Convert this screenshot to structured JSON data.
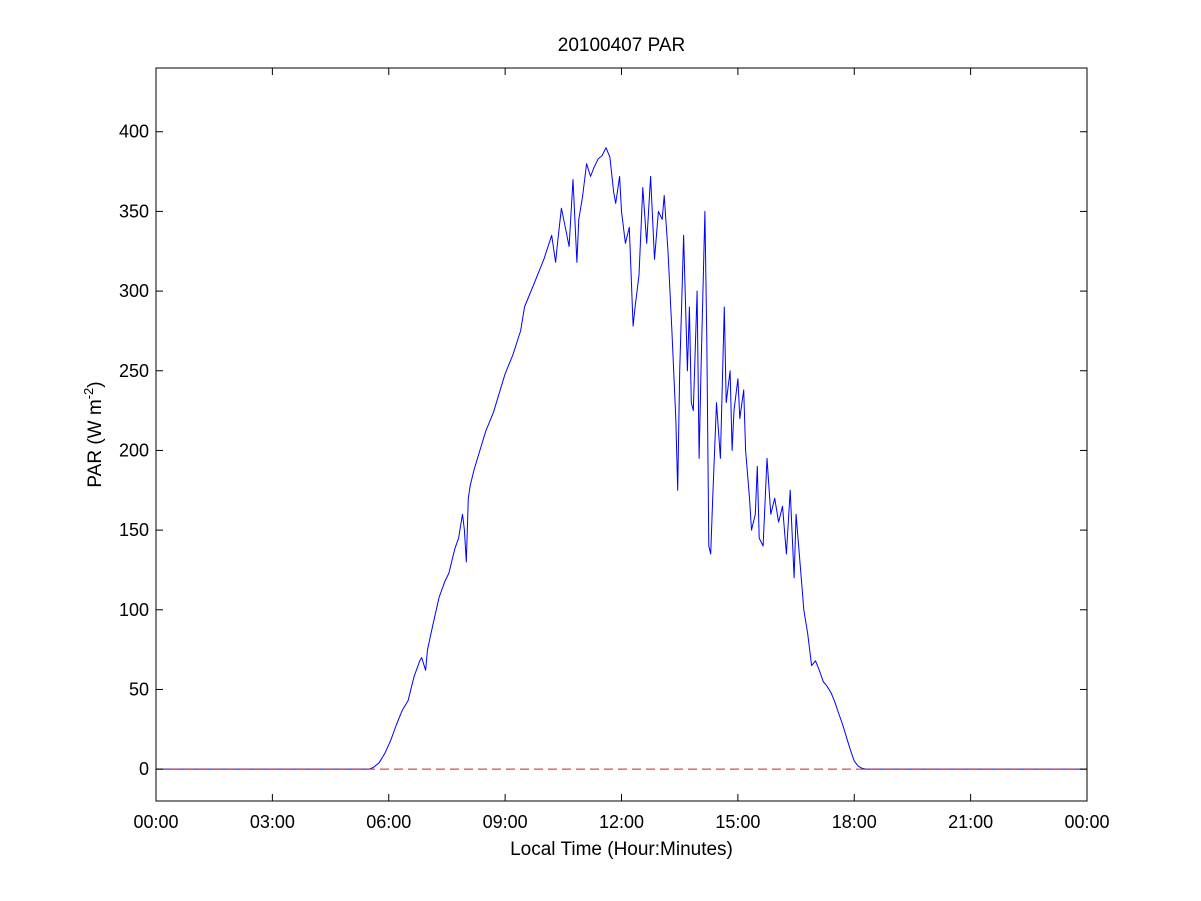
{
  "chart_data": {
    "type": "line",
    "title": "20100407 PAR",
    "xlabel": "Local Time (Hour:Minutes)",
    "ylabel": {
      "prefix": "PAR (W m",
      "superscript": "-2",
      "suffix": ")"
    },
    "x_unit": "hours",
    "xlim": [
      0,
      24
    ],
    "ylim": [
      -20,
      440
    ],
    "xticks": [
      {
        "value": 0,
        "label": "00:00"
      },
      {
        "value": 3,
        "label": "03:00"
      },
      {
        "value": 6,
        "label": "06:00"
      },
      {
        "value": 9,
        "label": "09:00"
      },
      {
        "value": 12,
        "label": "12:00"
      },
      {
        "value": 15,
        "label": "15:00"
      },
      {
        "value": 18,
        "label": "18:00"
      },
      {
        "value": 21,
        "label": "21:00"
      },
      {
        "value": 24,
        "label": "00:00"
      }
    ],
    "yticks": [
      {
        "value": 0,
        "label": "0"
      },
      {
        "value": 50,
        "label": "50"
      },
      {
        "value": 100,
        "label": "100"
      },
      {
        "value": 150,
        "label": "150"
      },
      {
        "value": 200,
        "label": "200"
      },
      {
        "value": 250,
        "label": "250"
      },
      {
        "value": 300,
        "label": "300"
      },
      {
        "value": 350,
        "label": "350"
      },
      {
        "value": 400,
        "label": "400"
      }
    ],
    "grid": false,
    "legend": "none",
    "series": [
      {
        "style": "solid",
        "color": "#0000ff",
        "x": [
          0,
          5.5,
          5.6,
          5.75,
          5.9,
          6.05,
          6.2,
          6.35,
          6.5,
          6.65,
          6.8,
          6.85,
          6.95,
          7.0,
          7.15,
          7.3,
          7.45,
          7.55,
          7.6,
          7.7,
          7.8,
          7.9,
          7.95,
          8.0,
          8.05,
          8.1,
          8.2,
          8.35,
          8.5,
          8.7,
          8.9,
          9.0,
          9.2,
          9.4,
          9.5,
          9.6,
          9.8,
          10.0,
          10.2,
          10.3,
          10.35,
          10.45,
          10.55,
          10.65,
          10.75,
          10.85,
          10.9,
          11.0,
          11.1,
          11.2,
          11.3,
          11.4,
          11.5,
          11.6,
          11.7,
          11.8,
          11.85,
          11.95,
          12.0,
          12.1,
          12.2,
          12.3,
          12.35,
          12.45,
          12.55,
          12.65,
          12.75,
          12.85,
          12.95,
          13.05,
          13.1,
          13.2,
          13.3,
          13.4,
          13.45,
          13.5,
          13.55,
          13.6,
          13.7,
          13.75,
          13.8,
          13.85,
          13.95,
          14.0,
          14.05,
          14.15,
          14.2,
          14.25,
          14.3,
          14.35,
          14.45,
          14.55,
          14.65,
          14.7,
          14.8,
          14.85,
          14.9,
          15.0,
          15.05,
          15.15,
          15.2,
          15.3,
          15.35,
          15.45,
          15.5,
          15.55,
          15.65,
          15.75,
          15.85,
          15.95,
          16.05,
          16.15,
          16.25,
          16.35,
          16.45,
          16.5,
          16.55,
          16.65,
          16.7,
          16.8,
          16.9,
          17.0,
          17.1,
          17.2,
          17.3,
          17.4,
          17.5,
          17.6,
          17.7,
          17.8,
          17.9,
          18.0,
          18.1,
          18.2,
          18.3,
          18.4,
          18.5,
          18.6,
          18.75,
          19.0,
          24
        ],
        "y": [
          0,
          0,
          1,
          4,
          10,
          18,
          28,
          37,
          43,
          58,
          68,
          70,
          62,
          75,
          92,
          108,
          118,
          123,
          128,
          138,
          145,
          160,
          150,
          130,
          170,
          178,
          188,
          200,
          212,
          224,
          240,
          248,
          260,
          275,
          290,
          296,
          308,
          320,
          335,
          318,
          330,
          352,
          340,
          328,
          370,
          318,
          345,
          360,
          380,
          372,
          378,
          383,
          385,
          390,
          384,
          362,
          355,
          372,
          350,
          330,
          340,
          278,
          290,
          310,
          365,
          330,
          372,
          320,
          350,
          345,
          360,
          325,
          275,
          220,
          175,
          250,
          290,
          335,
          250,
          290,
          230,
          225,
          300,
          195,
          250,
          350,
          270,
          140,
          135,
          170,
          230,
          195,
          290,
          230,
          250,
          200,
          225,
          245,
          220,
          238,
          200,
          170,
          150,
          160,
          190,
          145,
          140,
          195,
          160,
          170,
          155,
          165,
          135,
          175,
          120,
          160,
          145,
          115,
          100,
          85,
          65,
          68,
          62,
          55,
          52,
          48,
          42,
          35,
          28,
          20,
          12,
          5,
          2,
          0.5,
          0,
          0,
          0,
          0,
          0,
          0,
          0
        ]
      },
      {
        "style": "dashed",
        "color": "#cc2222",
        "x": [
          0,
          24
        ],
        "y": [
          0,
          0
        ]
      }
    ]
  }
}
